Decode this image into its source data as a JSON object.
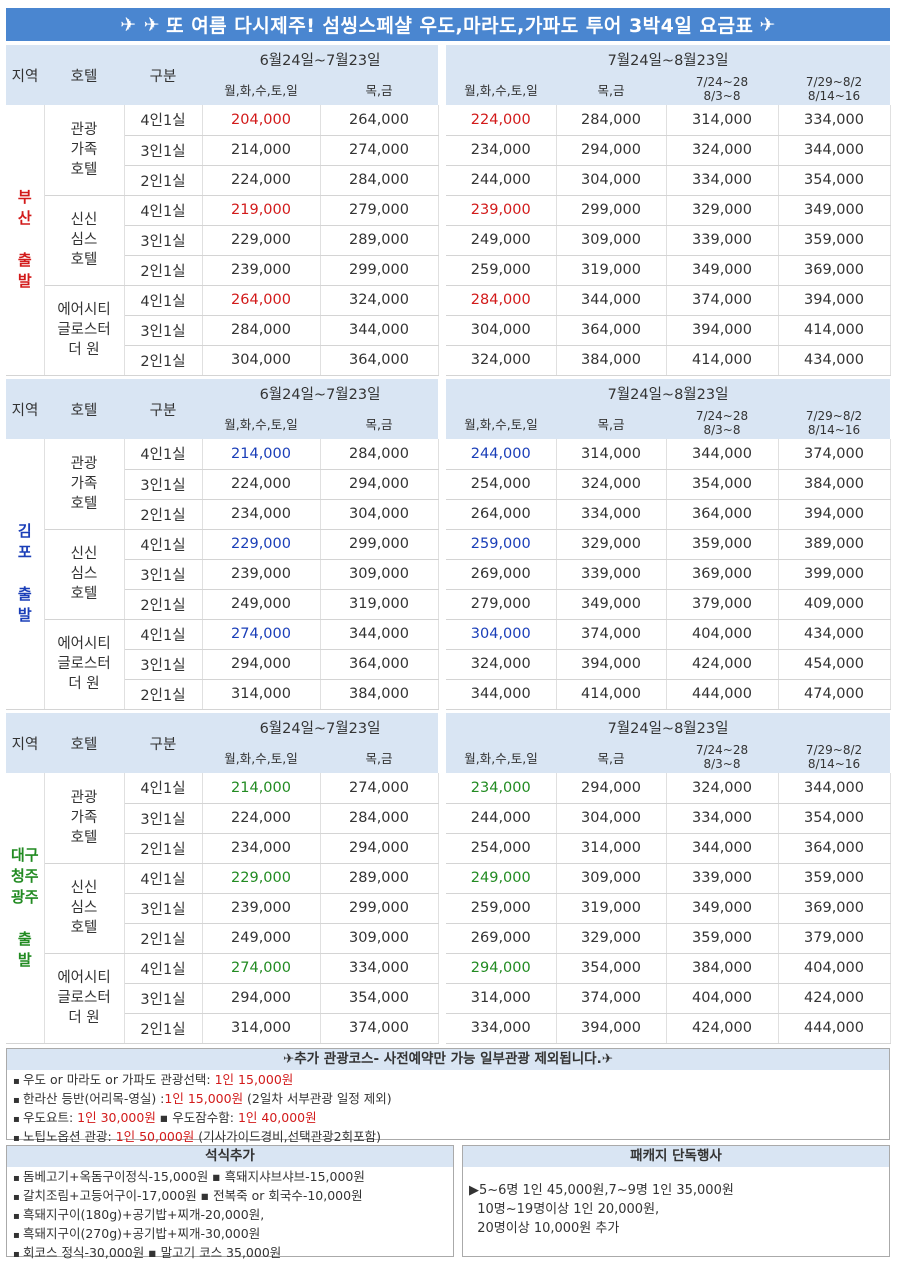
{
  "banner": {
    "text": "또 여름 다시제주! 섬씽스페샬 우도,마라도,가파도 투어 3박4일 요금표"
  },
  "header": {
    "region": "지역",
    "hotel": "호텔",
    "room_type": "구분",
    "period1": "6월24일~7월23일",
    "period2": "7월24일~8월23일",
    "weekday": "월,화,수,토,일",
    "thufri": "목,금",
    "peak1_a": "7/24~28",
    "peak1_b": "8/3~8",
    "peak2_a": "7/29~8/2",
    "peak2_b": "8/14~16"
  },
  "rooms": [
    "4인1실",
    "3인1실",
    "2인1실"
  ],
  "hotels": [
    [
      "관광",
      "가족",
      "호텔"
    ],
    [
      "신신",
      "심스",
      "호텔"
    ],
    [
      "에어시티",
      "글로스터",
      "더 원"
    ]
  ],
  "sections": [
    {
      "region": [
        "부",
        "산",
        "",
        "출",
        "발"
      ],
      "accent": "#d21a1a",
      "rows": [
        [
          "204,000",
          "264,000",
          "224,000",
          "284,000",
          "314,000",
          "334,000"
        ],
        [
          "214,000",
          "274,000",
          "234,000",
          "294,000",
          "324,000",
          "344,000"
        ],
        [
          "224,000",
          "284,000",
          "244,000",
          "304,000",
          "334,000",
          "354,000"
        ],
        [
          "219,000",
          "279,000",
          "239,000",
          "299,000",
          "329,000",
          "349,000"
        ],
        [
          "229,000",
          "289,000",
          "249,000",
          "309,000",
          "339,000",
          "359,000"
        ],
        [
          "239,000",
          "299,000",
          "259,000",
          "319,000",
          "349,000",
          "369,000"
        ],
        [
          "264,000",
          "324,000",
          "284,000",
          "344,000",
          "374,000",
          "394,000"
        ],
        [
          "284,000",
          "344,000",
          "304,000",
          "364,000",
          "394,000",
          "414,000"
        ],
        [
          "304,000",
          "364,000",
          "324,000",
          "384,000",
          "414,000",
          "434,000"
        ]
      ]
    },
    {
      "region": [
        "김",
        "포",
        "",
        "출",
        "발"
      ],
      "accent": "#1a3eb8",
      "rows": [
        [
          "214,000",
          "284,000",
          "244,000",
          "314,000",
          "344,000",
          "374,000"
        ],
        [
          "224,000",
          "294,000",
          "254,000",
          "324,000",
          "354,000",
          "384,000"
        ],
        [
          "234,000",
          "304,000",
          "264,000",
          "334,000",
          "364,000",
          "394,000"
        ],
        [
          "229,000",
          "299,000",
          "259,000",
          "329,000",
          "359,000",
          "389,000"
        ],
        [
          "239,000",
          "309,000",
          "269,000",
          "339,000",
          "369,000",
          "399,000"
        ],
        [
          "249,000",
          "319,000",
          "279,000",
          "349,000",
          "379,000",
          "409,000"
        ],
        [
          "274,000",
          "344,000",
          "304,000",
          "374,000",
          "404,000",
          "434,000"
        ],
        [
          "294,000",
          "364,000",
          "324,000",
          "394,000",
          "424,000",
          "454,000"
        ],
        [
          "314,000",
          "384,000",
          "344,000",
          "414,000",
          "444,000",
          "474,000"
        ]
      ]
    },
    {
      "region": [
        "대구",
        "청주",
        "광주",
        "",
        "출",
        "발"
      ],
      "accent": "#228b22",
      "rows": [
        [
          "214,000",
          "274,000",
          "234,000",
          "294,000",
          "324,000",
          "344,000"
        ],
        [
          "224,000",
          "284,000",
          "244,000",
          "304,000",
          "334,000",
          "354,000"
        ],
        [
          "234,000",
          "294,000",
          "254,000",
          "314,000",
          "344,000",
          "364,000"
        ],
        [
          "229,000",
          "289,000",
          "249,000",
          "309,000",
          "339,000",
          "359,000"
        ],
        [
          "239,000",
          "299,000",
          "259,000",
          "319,000",
          "349,000",
          "369,000"
        ],
        [
          "249,000",
          "309,000",
          "269,000",
          "329,000",
          "359,000",
          "379,000"
        ],
        [
          "274,000",
          "334,000",
          "294,000",
          "354,000",
          "384,000",
          "404,000"
        ],
        [
          "294,000",
          "354,000",
          "314,000",
          "374,000",
          "404,000",
          "424,000"
        ],
        [
          "314,000",
          "374,000",
          "334,000",
          "394,000",
          "424,000",
          "444,000"
        ]
      ]
    }
  ],
  "extra_tour": {
    "title": "추가 관광코스- 사전예약만 가능 일부관광 제외됩니다.",
    "lines": [
      [
        {
          "t": "우도 or 마라도 or 가파도 관광선택: "
        },
        {
          "t": "1인 15,000원",
          "red": true
        }
      ],
      [
        {
          "t": "한라산 등반(어리목-영실) :"
        },
        {
          "t": "1인 15,000원",
          "red": true
        },
        {
          "t": " (2일차 서부관광 일정 제외)"
        }
      ],
      [
        {
          "t": "우도요트: "
        },
        {
          "t": "1인 30,000원",
          "red": true
        },
        {
          "t": "   ▪ 우도잠수함: "
        },
        {
          "t": "1인 40,000원",
          "red": true
        }
      ],
      [
        {
          "t": "노팁노옵션 관광: "
        },
        {
          "t": "1인 50,000원",
          "red": true
        },
        {
          "t": " (기사가이드경비,선택관광2회포함)"
        }
      ]
    ]
  },
  "meals": {
    "title": "석식추가",
    "lines": [
      "돔베고기+옥돔구이정식-15,000원  ▪ 흑돼지샤브샤브-15,000원",
      "갈치조림+고등어구이-17,000원  ▪ 전복죽 or 회국수-10,000원",
      "흑돼지구이(180g)+공기밥+찌개-20,000원,",
      "흑돼지구이(270g)+공기밥+찌개-30,000원",
      "회코스 정식-30,000원   ▪ 말고기 코스 35,000원"
    ]
  },
  "package": {
    "title": "패캐지 단독행사",
    "lines": [
      "▶5~6명 1인 45,000원,7~9명 1인 35,000원",
      "  10명~19명이상 1인 20,000원,",
      "  20명이상 10,000원 추가"
    ]
  }
}
